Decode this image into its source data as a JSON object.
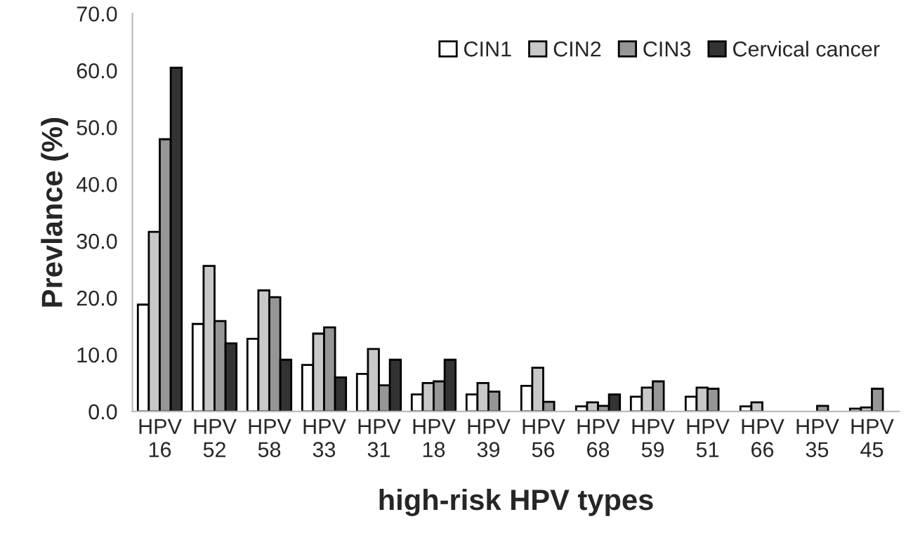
{
  "chart_data": {
    "type": "bar",
    "xlabel": "high-risk HPV types",
    "ylabel": "Prevlance (%)",
    "categories": [
      "HPV\n16",
      "HPV\n52",
      "HPV\n58",
      "HPV\n33",
      "HPV\n31",
      "HPV\n18",
      "HPV\n39",
      "HPV\n56",
      "HPV\n68",
      "HPV\n59",
      "HPV\n51",
      "HPV\n66",
      "HPV\n35",
      "HPV\n45"
    ],
    "series": [
      {
        "name": "CIN1",
        "color": "#ffffff",
        "values": [
          18.8,
          15.4,
          12.8,
          8.2,
          6.6,
          3.0,
          3.0,
          4.5,
          0.9,
          2.6,
          2.6,
          0.9,
          null,
          0.5
        ]
      },
      {
        "name": "CIN2",
        "color": "#c8c8c8",
        "values": [
          31.6,
          25.6,
          21.3,
          13.7,
          11.0,
          5.0,
          5.0,
          7.7,
          1.6,
          4.2,
          4.2,
          1.6,
          null,
          0.7
        ]
      },
      {
        "name": "CIN3",
        "color": "#969696",
        "values": [
          47.9,
          15.9,
          20.1,
          14.8,
          4.6,
          5.3,
          3.5,
          1.7,
          1.0,
          5.3,
          4.0,
          null,
          1.0,
          4.0
        ]
      },
      {
        "name": "Cervical cancer",
        "color": "#333333",
        "values": [
          60.5,
          12.0,
          9.1,
          6.0,
          9.1,
          9.1,
          null,
          null,
          3.0,
          null,
          null,
          null,
          null,
          null
        ]
      }
    ],
    "ylim": [
      0,
      70
    ],
    "yticks": [
      {
        "value": 0,
        "label": "0.0"
      },
      {
        "value": 10,
        "label": "10.0"
      },
      {
        "value": 20,
        "label": "20.0"
      },
      {
        "value": 30,
        "label": "30.0"
      },
      {
        "value": 40,
        "label": "40.0"
      },
      {
        "value": 50,
        "label": "50.0"
      },
      {
        "value": 60,
        "label": "60.0"
      },
      {
        "value": 70,
        "label": "70.0"
      }
    ],
    "grid": false,
    "legend": "top right"
  }
}
